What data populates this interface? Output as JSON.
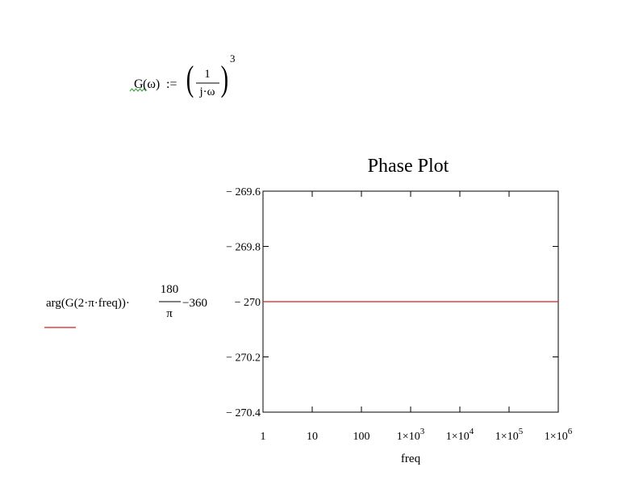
{
  "equation": {
    "func_name": "G",
    "func_arg": "(ω)",
    "assign": ":=",
    "numerator": "1",
    "denominator": "j·ω",
    "exponent": "3",
    "warning_color": "#2e9e2e"
  },
  "chart_data": {
    "type": "line",
    "title": "Phase Plot",
    "xlabel": "freq",
    "ylabel": {
      "prefix": "arg(G(2·π·freq))·",
      "frac_num": "180",
      "frac_den": "π",
      "suffix": "−360"
    },
    "x_scale": "log",
    "xlim": [
      1,
      1000000
    ],
    "ylim": [
      -270.4,
      -269.6
    ],
    "x_ticks": [
      {
        "value": 1,
        "mant": "1",
        "exp": ""
      },
      {
        "value": 10,
        "mant": "10",
        "exp": ""
      },
      {
        "value": 100,
        "mant": "100",
        "exp": ""
      },
      {
        "value": 1000,
        "mant": "1×10",
        "exp": "3"
      },
      {
        "value": 10000,
        "mant": "1×10",
        "exp": "4"
      },
      {
        "value": 100000,
        "mant": "1×10",
        "exp": "5"
      },
      {
        "value": 1000000,
        "mant": "1×10",
        "exp": "6"
      }
    ],
    "y_ticks": [
      {
        "value": -269.6,
        "label": "− 269.6"
      },
      {
        "value": -269.8,
        "label": "− 269.8"
      },
      {
        "value": -270.0,
        "label": "− 270"
      },
      {
        "value": -270.2,
        "label": "− 270.2"
      },
      {
        "value": -270.4,
        "label": "− 270.4"
      }
    ],
    "grid": false,
    "series": [
      {
        "x": [
          1,
          1000000
        ],
        "y": [
          -270,
          -270
        ],
        "color": "#d42020"
      }
    ]
  }
}
